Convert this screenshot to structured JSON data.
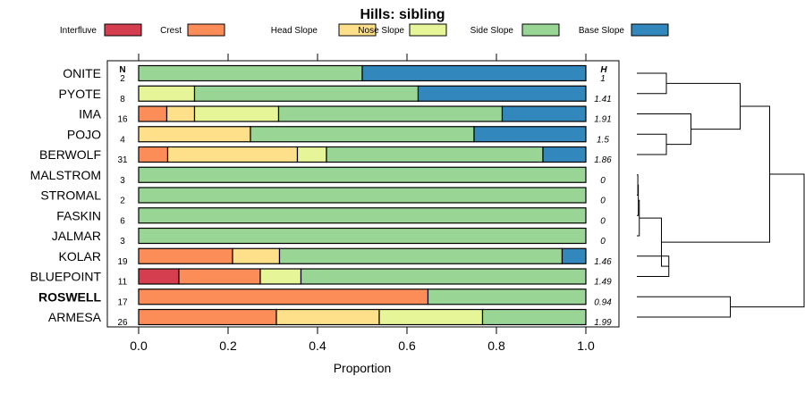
{
  "chart_data": {
    "type": "bar",
    "subtype": "stacked-horizontal-proportion",
    "title": "Hills: sibling",
    "xlabel": "Proportion",
    "ylabel": "",
    "xlim": [
      0,
      1
    ],
    "xticks": [
      "0.0",
      "0.2",
      "0.4",
      "0.6",
      "0.8",
      "1.0"
    ],
    "n_header": "N",
    "h_header": "H",
    "highlighted": "ROSWELL",
    "legend": [
      {
        "name": "Interfluve",
        "color": "#D53E4F"
      },
      {
        "name": "Crest",
        "color": "#FC8D59"
      },
      {
        "name": "Head Slope",
        "color": "#FEE08B"
      },
      {
        "name": "Nose Slope",
        "color": "#E6F598"
      },
      {
        "name": "Side Slope",
        "color": "#99D594"
      },
      {
        "name": "Base Slope",
        "color": "#3288BD"
      }
    ],
    "categories": [
      "ONITE",
      "PYOTE",
      "IMA",
      "POJO",
      "BERWOLF",
      "MALSTROM",
      "STROMAL",
      "FASKIN",
      "JALMAR",
      "KOLAR",
      "BLUEPOINT",
      "ROSWELL",
      "ARMESA"
    ],
    "n": [
      "2",
      "8",
      "16",
      "4",
      "31",
      "3",
      "2",
      "6",
      "3",
      "19",
      "11",
      "17",
      "26"
    ],
    "h": [
      "1",
      "1.41",
      "1.91",
      "1.5",
      "1.86",
      "0",
      "0",
      "0",
      "0",
      "1.46",
      "1.49",
      "0.94",
      "1.99"
    ],
    "series": [
      {
        "name": "Interfluve",
        "values": [
          0,
          0,
          0,
          0,
          0,
          0,
          0,
          0,
          0,
          0,
          0.09,
          0,
          0
        ]
      },
      {
        "name": "Crest",
        "values": [
          0,
          0,
          0.063,
          0,
          0.065,
          0,
          0,
          0,
          0,
          0.21,
          0.182,
          0.647,
          0.308
        ]
      },
      {
        "name": "Head Slope",
        "values": [
          0,
          0,
          0.062,
          0.25,
          0.29,
          0,
          0,
          0,
          0,
          0.105,
          0,
          0,
          0.23
        ]
      },
      {
        "name": "Nose Slope",
        "values": [
          0,
          0.125,
          0.188,
          0,
          0.065,
          0,
          0,
          0,
          0,
          0,
          0.091,
          0,
          0.231
        ]
      },
      {
        "name": "Side Slope",
        "values": [
          0.5,
          0.5,
          0.5,
          0.5,
          0.484,
          1,
          1,
          1,
          1,
          0.632,
          0.637,
          0.353,
          0.231
        ]
      },
      {
        "name": "Base Slope",
        "values": [
          0.5,
          0.375,
          0.187,
          0.25,
          0.096,
          0,
          0,
          0,
          0,
          0.053,
          0,
          0,
          0
        ]
      }
    ],
    "dendrogram": {
      "leaf_order": [
        "ONITE",
        "PYOTE",
        "IMA",
        "POJO",
        "BERWOLF",
        "MALSTROM",
        "STROMAL",
        "FASKIN",
        "JALMAR",
        "KOLAR",
        "BLUEPOINT",
        "ROSWELL",
        "ARMESA"
      ],
      "merges": [
        {
          "a": "MALSTROM",
          "b": "STROMAL",
          "height": 0.02
        },
        {
          "a": "FASKIN",
          "b": "c1",
          "height": 0.03
        },
        {
          "a": "c2",
          "b": "JALMAR",
          "height": 0.05
        },
        {
          "a": "ONITE",
          "b": "PYOTE",
          "height": 0.6
        },
        {
          "a": "POJO",
          "b": "BERWOLF",
          "height": 0.6
        },
        {
          "a": "KOLAR",
          "b": "BLUEPOINT",
          "height": 0.65
        },
        {
          "a": "c5",
          "b": "IMA",
          "height": 1.1
        },
        {
          "a": "c4",
          "b": "c7",
          "height": 2.1
        },
        {
          "a": "c3",
          "b": "c6",
          "height": 0.5
        },
        {
          "a": "ROSWELL",
          "b": "ARMESA",
          "height": 1.9
        },
        {
          "a": "c8",
          "b": "c9",
          "height": 2.7
        },
        {
          "a": "c11",
          "b": "c10",
          "height": 3.4
        }
      ]
    }
  }
}
